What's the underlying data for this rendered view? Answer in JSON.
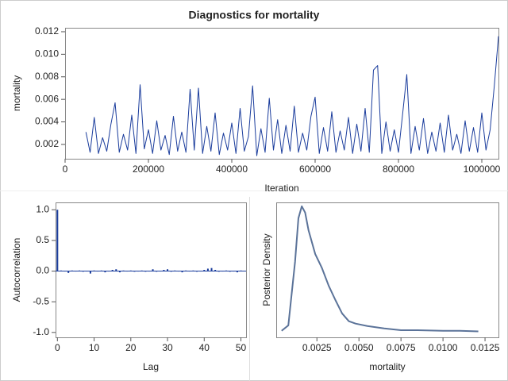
{
  "chart_data": [
    {
      "type": "line",
      "title": "Diagnostics for mortality",
      "x_label": "Iteration",
      "y_label": "mortality",
      "x": [
        50000,
        60000,
        70000,
        80000,
        90000,
        100000,
        110000,
        120000,
        130000,
        140000,
        150000,
        160000,
        170000,
        180000,
        190000,
        200000,
        210000,
        220000,
        230000,
        240000,
        250000,
        260000,
        270000,
        280000,
        290000,
        300000,
        310000,
        320000,
        330000,
        340000,
        350000,
        360000,
        370000,
        380000,
        390000,
        400000,
        410000,
        420000,
        430000,
        440000,
        450000,
        460000,
        470000,
        480000,
        490000,
        500000,
        510000,
        520000,
        530000,
        540000,
        550000,
        560000,
        570000,
        580000,
        590000,
        600000,
        610000,
        620000,
        630000,
        640000,
        650000,
        660000,
        670000,
        680000,
        690000,
        700000,
        710000,
        720000,
        730000,
        740000,
        750000,
        760000,
        770000,
        780000,
        790000,
        800000,
        810000,
        820000,
        830000,
        840000,
        850000,
        860000,
        870000,
        880000,
        890000,
        900000,
        910000,
        920000,
        930000,
        940000,
        950000,
        960000,
        970000,
        980000,
        990000,
        1000000,
        1010000,
        1020000,
        1030000,
        1040000
      ],
      "series": [
        {
          "name": "mortality",
          "color": "#1a3c9c",
          "values": [
            0.0031,
            0.0013,
            0.0044,
            0.0012,
            0.0026,
            0.0014,
            0.0038,
            0.0057,
            0.0013,
            0.0029,
            0.0015,
            0.0046,
            0.0012,
            0.0073,
            0.0016,
            0.0033,
            0.0012,
            0.0041,
            0.0015,
            0.0028,
            0.0011,
            0.0045,
            0.0014,
            0.0031,
            0.0013,
            0.0069,
            0.0015,
            0.007,
            0.0012,
            0.0036,
            0.0014,
            0.0048,
            0.0011,
            0.003,
            0.0015,
            0.0039,
            0.0012,
            0.0052,
            0.0014,
            0.0027,
            0.0072,
            0.001,
            0.0034,
            0.0013,
            0.0061,
            0.0015,
            0.0042,
            0.0012,
            0.0037,
            0.0014,
            0.0054,
            0.0013,
            0.003,
            0.0015,
            0.0045,
            0.0062,
            0.0012,
            0.0035,
            0.0014,
            0.0049,
            0.0013,
            0.0032,
            0.0015,
            0.0044,
            0.0012,
            0.0038,
            0.0014,
            0.0052,
            0.0013,
            0.0086,
            0.009,
            0.0012,
            0.004,
            0.0014,
            0.0033,
            0.0013,
            0.0047,
            0.0082,
            0.0012,
            0.0036,
            0.0015,
            0.0043,
            0.0012,
            0.0031,
            0.0014,
            0.0039,
            0.0013,
            0.0046,
            0.0015,
            0.0029,
            0.0012,
            0.0041,
            0.0014,
            0.0035,
            0.0013,
            0.0048,
            0.0015,
            0.0033,
            0.0072,
            0.0116
          ]
        }
      ],
      "xlim": [
        0,
        1040000
      ],
      "xticks": [
        0,
        200000,
        400000,
        600000,
        800000,
        1000000
      ],
      "ylim": [
        0.00073,
        0.01235
      ],
      "yticks": [
        0.002,
        0.004,
        0.006,
        0.008,
        {
          "value": 0.01,
          "label": "0.010"
        },
        {
          "value": 0.012,
          "label": "0.012"
        }
      ]
    },
    {
      "type": "bar",
      "x_label": "Lag",
      "y_label": "Autocorrelation",
      "x": [
        0,
        1,
        2,
        3,
        4,
        5,
        6,
        7,
        8,
        9,
        10,
        11,
        12,
        13,
        14,
        15,
        16,
        17,
        18,
        19,
        20,
        21,
        22,
        23,
        24,
        25,
        26,
        27,
        28,
        29,
        30,
        31,
        32,
        33,
        34,
        35,
        36,
        37,
        38,
        39,
        40,
        41,
        42,
        43,
        44,
        45,
        46,
        47,
        48,
        49,
        50
      ],
      "series": [
        {
          "name": "Autocorrelation",
          "color": "#1a3c9c",
          "values": [
            1.0,
            0.01,
            0.0,
            -0.03,
            0.01,
            0.0,
            0.01,
            -0.01,
            0.0,
            -0.04,
            0.01,
            0.0,
            0.01,
            -0.02,
            0.0,
            0.02,
            0.03,
            -0.02,
            0.01,
            0.0,
            0.01,
            -0.01,
            0.0,
            0.01,
            -0.01,
            0.0,
            0.03,
            -0.01,
            0.0,
            0.02,
            0.03,
            -0.01,
            0.01,
            0.0,
            -0.02,
            0.01,
            0.0,
            0.01,
            -0.01,
            0.0,
            0.02,
            0.04,
            0.05,
            0.02,
            -0.01,
            0.0,
            0.01,
            -0.01,
            0.0,
            -0.02,
            0.01
          ]
        }
      ],
      "xlim": [
        -0.5,
        51.4
      ],
      "xticks": [
        0,
        10,
        20,
        30,
        40,
        50
      ],
      "ylim": [
        -1.08,
        1.12
      ],
      "yticks": [
        {
          "value": -1,
          "label": "-1.0"
        },
        {
          "value": -0.5,
          "label": "-0.5"
        },
        {
          "value": 0,
          "label": "0.0"
        },
        {
          "value": 0.5,
          "label": "0.5"
        },
        {
          "value": 1,
          "label": "1.0"
        }
      ]
    },
    {
      "type": "line",
      "x_label": "mortality",
      "y_label": "Posterior Density",
      "x": [
        0.0004,
        0.0008,
        0.0012,
        0.0014,
        0.0016,
        0.0018,
        0.002,
        0.0024,
        0.0028,
        0.0032,
        0.0036,
        0.004,
        0.0044,
        0.0048,
        0.0055,
        0.0065,
        0.007,
        0.0075,
        0.0085,
        0.01,
        0.011,
        0.0121
      ],
      "series": [
        {
          "name": "Posterior Density",
          "color": "#5b7399",
          "values": [
            3,
            21,
            234,
            380,
            420,
            399,
            340,
            260,
            213,
            154,
            106,
            61,
            35,
            27,
            19,
            11,
            8,
            5,
            5,
            3,
            3,
            1
          ]
        }
      ],
      "xlim": [
        8e-05,
        0.0133
      ],
      "xticks": [
        0.0025,
        {
          "value": 0.005,
          "label": "0.0050"
        },
        0.0075,
        {
          "value": 0.01,
          "label": "0.0100"
        },
        0.0125
      ],
      "ylim": [
        -19,
        433
      ]
    }
  ]
}
